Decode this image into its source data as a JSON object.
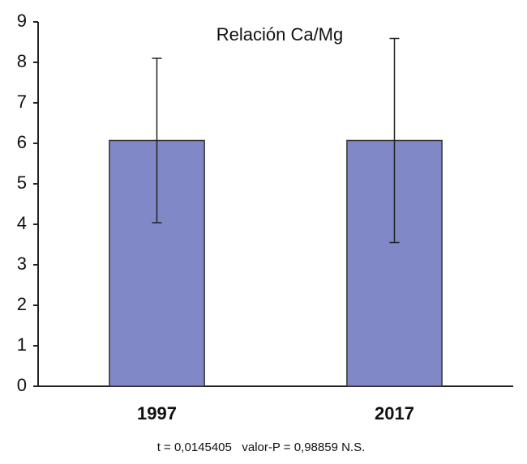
{
  "chart_data": {
    "type": "bar",
    "title": "Relación Ca/Mg",
    "categories": [
      "1997",
      "2017"
    ],
    "values": [
      6.07,
      6.07
    ],
    "errors": [
      2.03,
      2.52
    ],
    "color": "#8088c8",
    "ylim": [
      0,
      9
    ],
    "yticks": [
      0,
      1,
      2,
      3,
      4,
      5,
      6,
      7,
      8,
      9
    ],
    "grid": false,
    "annotation": "t = 0,0145405   valor-P = 0,98859 N.S."
  }
}
